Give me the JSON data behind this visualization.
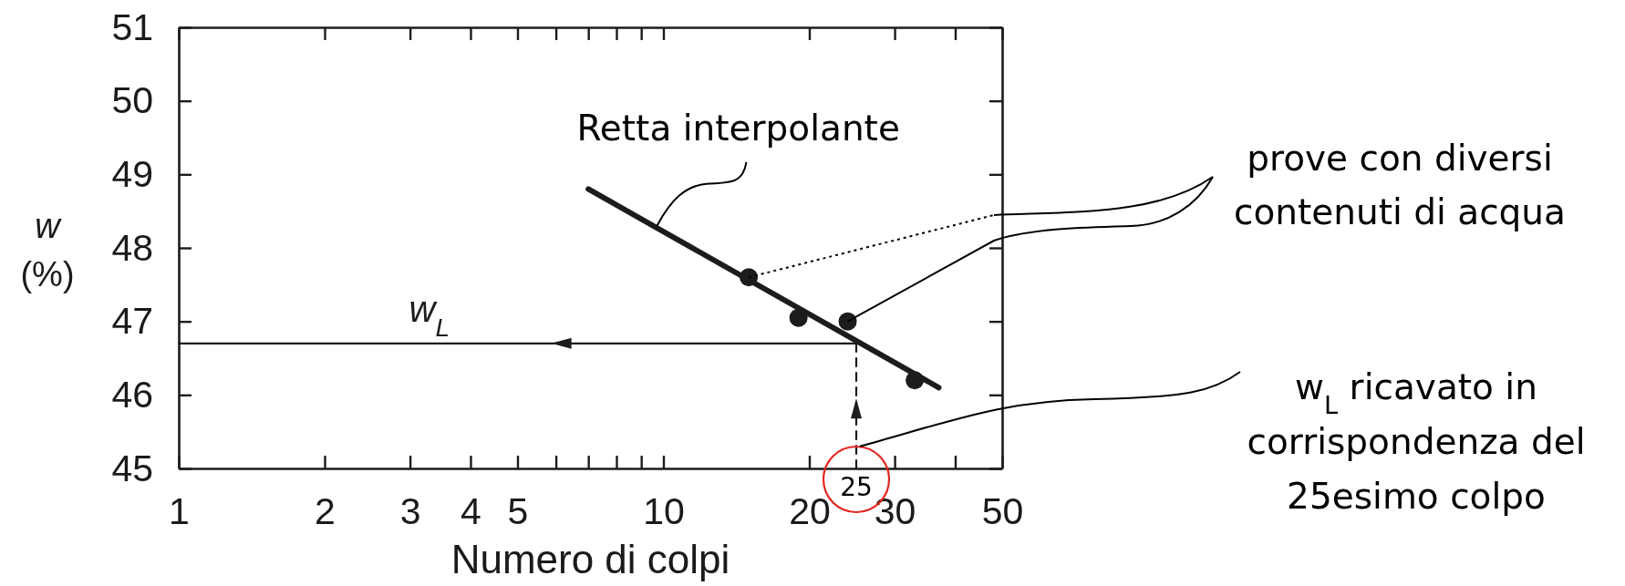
{
  "chart_data": {
    "type": "scatter",
    "xlabel": "Numero di colpi",
    "ylabel": "w (%)",
    "log": "x",
    "xlim": [
      1,
      50
    ],
    "ylim": [
      45,
      51
    ],
    "xticks": [
      1,
      2,
      3,
      4,
      5,
      {
        "value": 6,
        "label": null
      },
      {
        "value": 7,
        "label": null
      },
      {
        "value": 8,
        "label": null
      },
      {
        "value": 9,
        "label": null
      },
      10,
      20,
      30,
      {
        "value": 40,
        "label": null
      },
      50
    ],
    "yticks": [
      45,
      46,
      47,
      48,
      49,
      50,
      51
    ],
    "series": [
      {
        "color": "#1c1c1c",
        "marker": "circle",
        "x": [
          15,
          19,
          24,
          33
        ],
        "values": [
          47.6,
          47.05,
          47.0,
          46.2
        ]
      },
      {
        "type": "line",
        "color": "#1c1c1c",
        "x": [
          7,
          37
        ],
        "values": [
          48.8,
          46.1
        ]
      },
      {
        "type": "line",
        "name": "w$_{L}$",
        "color": "#1c1c1c",
        "x": [
          1,
          25
        ],
        "values": [
          46.7,
          46.7
        ]
      },
      {
        "type": "line",
        "color": "#1c1c1c",
        "line_style": "dashed",
        "x": [
          25,
          25
        ],
        "values": [
          45,
          46.7
        ]
      }
    ],
    "annotations": [
      {
        "text": "Retta interpolante",
        "x": 9.7,
        "y": 48.3
      },
      {
        "text": "prove con diversi contenuti di acqua",
        "x": 24,
        "y": 47.0
      },
      {
        "text": "25",
        "x": 25,
        "y": 45
      },
      {
        "text": "w$_{L}$ ricavato in corrispondenza del 25esimo colpo",
        "x": 25,
        "y": 45.3
      }
    ]
  }
}
